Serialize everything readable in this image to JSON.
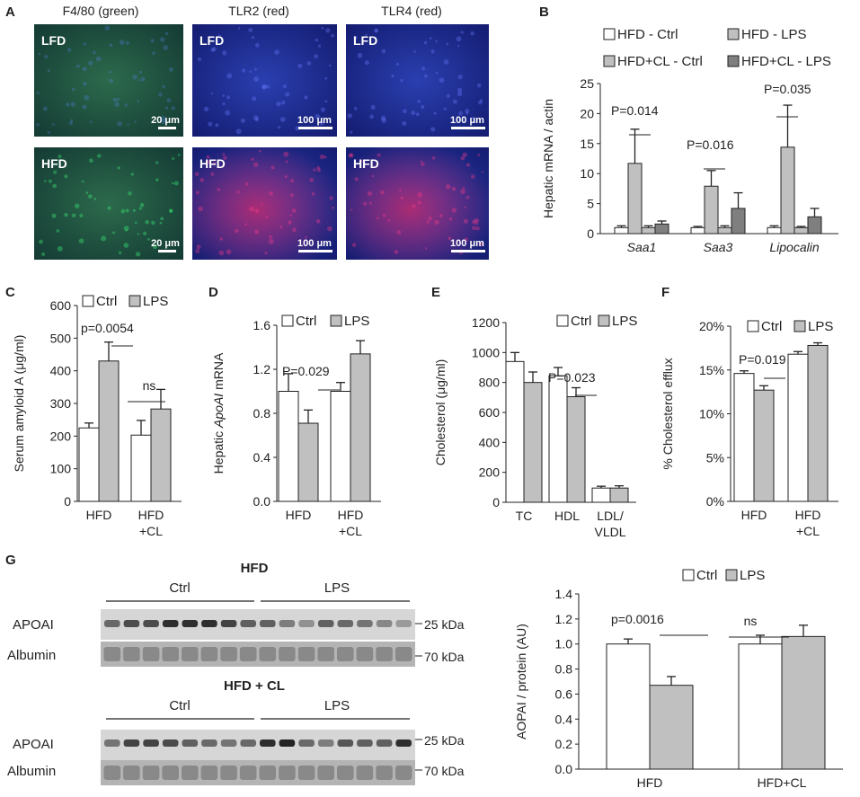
{
  "panels_a": {
    "letter": "A",
    "column_titles": [
      "F4/80 (green)",
      "TLR2 (red)",
      "TLR4 (red)"
    ],
    "row_labels": [
      "LFD",
      "HFD"
    ],
    "scale_bars": [
      [
        "20 μm",
        "100 μm",
        "100 μm"
      ],
      [
        "20 μm",
        "100 μm",
        "100 μm"
      ]
    ]
  },
  "panel_g_blots": {
    "letter": "G",
    "top": {
      "title": "HFD",
      "groups": [
        "Ctrl",
        "LPS"
      ],
      "rows": [
        "APOAI",
        "Albumin"
      ],
      "markers": [
        "25 kDa",
        "70 kDa"
      ]
    },
    "bottom": {
      "title": "HFD + CL",
      "groups": [
        "Ctrl",
        "LPS"
      ],
      "rows": [
        "APOAI",
        "Albumin"
      ],
      "markers": [
        "25 kDa",
        "70 kDa"
      ]
    }
  },
  "colors": {
    "white_bar": "#ffffff",
    "gray_bar": "#c0c0c0",
    "dark_bar": "#7f7f7f",
    "stroke": "#222222"
  },
  "chart_data": [
    {
      "id": "B",
      "letter": "B",
      "type": "bar",
      "categories": [
        "Saa1",
        "Saa3",
        "Lipocalin"
      ],
      "ylabel": "Hepatic mRNA / actin",
      "ylim": [
        0,
        25
      ],
      "yticks": [
        0,
        5,
        10,
        15,
        20,
        25
      ],
      "legend": [
        "HFD - Ctrl",
        "HFD - LPS",
        "HFD+CL - Ctrl",
        "HFD+CL - LPS"
      ],
      "series": [
        {
          "name": "HFD - Ctrl",
          "values": [
            1.0,
            1.0,
            1.0
          ],
          "errors": [
            0.3,
            0.2,
            0.3
          ]
        },
        {
          "name": "HFD - LPS",
          "values": [
            11.7,
            7.9,
            14.4
          ],
          "errors": [
            5.7,
            2.6,
            7.0
          ]
        },
        {
          "name": "HFD+CL - Ctrl",
          "values": [
            1.0,
            1.0,
            1.0
          ],
          "errors": [
            0.3,
            0.3,
            0.2
          ]
        },
        {
          "name": "HFD+CL - LPS",
          "values": [
            1.6,
            4.2,
            2.8
          ],
          "errors": [
            0.5,
            2.6,
            1.4
          ]
        }
      ],
      "annotations": [
        "P=0.014",
        "P=0.016",
        "P=0.035"
      ]
    },
    {
      "id": "C",
      "letter": "C",
      "type": "bar",
      "categories": [
        "HFD",
        "HFD\n+CL"
      ],
      "ylabel": "Serum amyloid A (μg/ml)",
      "ylim": [
        0,
        600
      ],
      "yticks": [
        0,
        100,
        200,
        300,
        400,
        500,
        600
      ],
      "legend": [
        "Ctrl",
        "LPS"
      ],
      "series": [
        {
          "name": "Ctrl",
          "values": [
            225,
            203
          ],
          "errors": [
            15,
            45
          ]
        },
        {
          "name": "LPS",
          "values": [
            430,
            283
          ],
          "errors": [
            58,
            60
          ]
        }
      ],
      "annotations": [
        "p=0.0054",
        "ns"
      ]
    },
    {
      "id": "D",
      "letter": "D",
      "type": "bar",
      "categories": [
        "HFD",
        "HFD\n+CL"
      ],
      "ylabel": "Hepatic ApoAI mRNA",
      "ylim": [
        0,
        1.6
      ],
      "yticks": [
        "0.0",
        "0.4",
        "0.8",
        "1.2",
        "1.6"
      ],
      "legend": [
        "Ctrl",
        "LPS"
      ],
      "series": [
        {
          "name": "Ctrl",
          "values": [
            1.0,
            1.0
          ],
          "errors": [
            0.16,
            0.08
          ]
        },
        {
          "name": "LPS",
          "values": [
            0.71,
            1.34
          ],
          "errors": [
            0.12,
            0.12
          ]
        }
      ],
      "annotations": [
        "P=0.029"
      ]
    },
    {
      "id": "E",
      "letter": "E",
      "type": "bar",
      "categories": [
        "TC",
        "HDL",
        "LDL/\nVLDL"
      ],
      "ylabel": "Cholesterol (μg/ml)",
      "ylim": [
        0,
        1200
      ],
      "yticks": [
        0,
        200,
        400,
        600,
        800,
        1000,
        1200
      ],
      "legend": [
        "Ctrl",
        "LPS"
      ],
      "series": [
        {
          "name": "Ctrl",
          "values": [
            940,
            845,
            95
          ],
          "errors": [
            60,
            55,
            12
          ]
        },
        {
          "name": "LPS",
          "values": [
            800,
            705,
            95
          ],
          "errors": [
            70,
            60,
            15
          ]
        }
      ],
      "annotations": [
        "P=0.023"
      ]
    },
    {
      "id": "F",
      "letter": "F",
      "type": "bar",
      "categories": [
        "HFD",
        "HFD\n+CL"
      ],
      "ylabel": "% Cholesterol efflux",
      "ylim": [
        0,
        20
      ],
      "yticks": [
        "0%",
        "5%",
        "10%",
        "15%",
        "20%"
      ],
      "legend": [
        "Ctrl",
        "LPS"
      ],
      "series": [
        {
          "name": "Ctrl",
          "values": [
            14.6,
            16.8
          ],
          "errors": [
            0.3,
            0.3
          ]
        },
        {
          "name": "LPS",
          "values": [
            12.7,
            17.8
          ],
          "errors": [
            0.5,
            0.3
          ]
        }
      ],
      "annotations": [
        "P=0.019"
      ]
    },
    {
      "id": "G",
      "letter": "",
      "type": "bar",
      "categories": [
        "HFD",
        "HFD+CL"
      ],
      "ylabel": "AOPAI / protein (AU)",
      "ylim": [
        0,
        1.4
      ],
      "yticks": [
        "0.0",
        "0.2",
        "0.4",
        "0.6",
        "0.8",
        "1.0",
        "1.2",
        "1.4"
      ],
      "legend": [
        "Ctrl",
        "LPS"
      ],
      "series": [
        {
          "name": "Ctrl",
          "values": [
            1.0,
            1.0
          ],
          "errors": [
            0.04,
            0.07
          ]
        },
        {
          "name": "LPS",
          "values": [
            0.67,
            1.06
          ],
          "errors": [
            0.07,
            0.09
          ]
        }
      ],
      "annotations": [
        "p=0.0016",
        "ns"
      ]
    }
  ]
}
